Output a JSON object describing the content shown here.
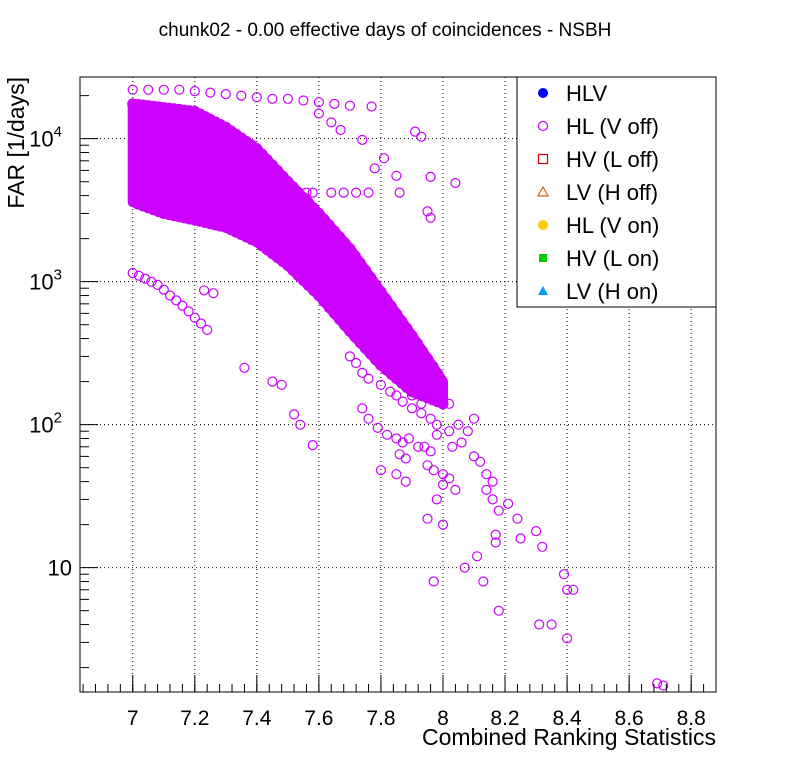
{
  "chart_data": {
    "type": "scatter",
    "title": "chunk02 - 0.00 effective days of coincidences - NSBH",
    "xlabel": "Combined Ranking Statistics",
    "ylabel": "FAR [1/days]",
    "xlim": [
      6.83,
      8.88
    ],
    "ylim": [
      1.35,
      27000
    ],
    "yscale": "log",
    "grid": true,
    "x_ticks": [
      "7",
      "7.2",
      "7.4",
      "7.6",
      "7.8",
      "8",
      "8.2",
      "8.4",
      "8.6",
      "8.8"
    ],
    "y_ticks": [
      {
        "value": 10,
        "base": "10",
        "exp": ""
      },
      {
        "value": 100,
        "base": "10",
        "exp": "2"
      },
      {
        "value": 1000,
        "base": "10",
        "exp": "3"
      },
      {
        "value": 10000,
        "base": "10",
        "exp": "4"
      }
    ],
    "legend_position": "top-right",
    "legend": [
      {
        "name": "HLV",
        "marker": "filled-circle",
        "color": "#0000ff"
      },
      {
        "name": "HL (V off)",
        "marker": "open-circle",
        "color": "#cc00ff"
      },
      {
        "name": "HV (L off)",
        "marker": "open-square",
        "color": "#cc0000"
      },
      {
        "name": "LV (H off)",
        "marker": "open-triangle",
        "color": "#cc6600"
      },
      {
        "name": "HL (V on)",
        "marker": "filled-circle",
        "color": "#ffcc00"
      },
      {
        "name": "HV (L on)",
        "marker": "filled-square",
        "color": "#00cc00"
      },
      {
        "name": "LV (H on)",
        "marker": "filled-triangle",
        "color": "#0099ff"
      }
    ],
    "series": [
      {
        "name": "HL (V off)",
        "color": "#cc00ff",
        "points": [
          [
            7.0,
            22000
          ],
          [
            7.05,
            22000
          ],
          [
            7.1,
            22000
          ],
          [
            7.15,
            22000
          ],
          [
            7.2,
            21500
          ],
          [
            7.25,
            21000
          ],
          [
            7.3,
            20500
          ],
          [
            7.35,
            20000
          ],
          [
            7.4,
            19500
          ],
          [
            7.45,
            19000
          ],
          [
            7.5,
            19000
          ],
          [
            7.55,
            18500
          ],
          [
            7.6,
            18000
          ],
          [
            7.65,
            17500
          ],
          [
            7.7,
            17000
          ],
          [
            7.77,
            16800
          ],
          [
            7.6,
            15000
          ],
          [
            7.64,
            13000
          ],
          [
            7.67,
            11500
          ],
          [
            7.74,
            9800
          ],
          [
            7.91,
            11200
          ],
          [
            7.93,
            10300
          ],
          [
            7.81,
            7300
          ],
          [
            7.85,
            5500
          ],
          [
            7.96,
            5400
          ],
          [
            8.04,
            4900
          ],
          [
            7.46,
            4200
          ],
          [
            7.5,
            4200
          ],
          [
            7.56,
            4200
          ],
          [
            7.58,
            4200
          ],
          [
            7.64,
            4200
          ],
          [
            7.68,
            4200
          ],
          [
            7.72,
            4200
          ],
          [
            7.76,
            4200
          ],
          [
            7.86,
            4200
          ],
          [
            7.95,
            3100
          ],
          [
            7.96,
            2800
          ],
          [
            7.78,
            6200
          ],
          [
            7.0,
            1150
          ],
          [
            7.02,
            1100
          ],
          [
            7.04,
            1050
          ],
          [
            7.06,
            1000
          ],
          [
            7.08,
            950
          ],
          [
            7.1,
            880
          ],
          [
            7.12,
            800
          ],
          [
            7.14,
            740
          ],
          [
            7.16,
            680
          ],
          [
            7.18,
            620
          ],
          [
            7.2,
            560
          ],
          [
            7.22,
            510
          ],
          [
            7.24,
            460
          ],
          [
            7.23,
            870
          ],
          [
            7.26,
            830
          ],
          [
            7.36,
            250
          ],
          [
            7.45,
            200
          ],
          [
            7.48,
            190
          ],
          [
            7.52,
            118
          ],
          [
            7.54,
            100
          ],
          [
            7.58,
            72
          ],
          [
            7.75,
            490
          ],
          [
            7.78,
            430
          ],
          [
            7.8,
            390
          ],
          [
            7.82,
            350
          ],
          [
            7.84,
            320
          ],
          [
            7.86,
            290
          ],
          [
            7.88,
            270
          ],
          [
            7.9,
            250
          ],
          [
            7.92,
            230
          ],
          [
            7.94,
            200
          ],
          [
            7.96,
            180
          ],
          [
            7.98,
            165
          ],
          [
            8.0,
            150
          ],
          [
            8.02,
            140
          ],
          [
            7.7,
            300
          ],
          [
            7.72,
            270
          ],
          [
            7.74,
            230
          ],
          [
            7.76,
            210
          ],
          [
            7.8,
            190
          ],
          [
            7.83,
            170
          ],
          [
            7.85,
            160
          ],
          [
            7.87,
            145
          ],
          [
            7.9,
            130
          ],
          [
            7.93,
            120
          ],
          [
            7.96,
            110
          ],
          [
            7.98,
            100
          ],
          [
            7.74,
            130
          ],
          [
            7.76,
            110
          ],
          [
            7.79,
            95
          ],
          [
            7.82,
            85
          ],
          [
            7.85,
            80
          ],
          [
            7.87,
            75
          ],
          [
            7.89,
            80
          ],
          [
            7.92,
            70
          ],
          [
            7.94,
            70
          ],
          [
            7.96,
            65
          ],
          [
            7.98,
            85
          ],
          [
            8.02,
            90
          ],
          [
            8.05,
            100
          ],
          [
            8.08,
            90
          ],
          [
            8.03,
            70
          ],
          [
            8.06,
            75
          ],
          [
            8.1,
            60
          ],
          [
            8.12,
            55
          ],
          [
            8.14,
            45
          ],
          [
            8.16,
            40
          ],
          [
            7.9,
            160
          ],
          [
            7.93,
            140
          ],
          [
            8.1,
            110
          ],
          [
            7.86,
            62
          ],
          [
            7.88,
            58
          ],
          [
            7.95,
            52
          ],
          [
            7.97,
            48
          ],
          [
            8.0,
            45
          ],
          [
            8.02,
            42
          ],
          [
            7.8,
            48
          ],
          [
            7.85,
            45
          ],
          [
            7.88,
            40
          ],
          [
            8.0,
            38
          ],
          [
            8.04,
            35
          ],
          [
            8.14,
            35
          ],
          [
            8.16,
            30
          ],
          [
            8.18,
            25
          ],
          [
            8.21,
            28
          ],
          [
            8.24,
            22
          ],
          [
            8.3,
            18
          ],
          [
            8.32,
            14
          ],
          [
            8.25,
            16
          ],
          [
            8.17,
            17
          ],
          [
            8.17,
            15
          ],
          [
            7.98,
            30
          ],
          [
            7.95,
            22
          ],
          [
            8.0,
            20
          ],
          [
            7.97,
            8
          ],
          [
            8.07,
            10
          ],
          [
            8.11,
            12
          ],
          [
            8.13,
            8
          ],
          [
            8.18,
            5
          ],
          [
            8.31,
            4
          ],
          [
            8.35,
            4
          ],
          [
            8.39,
            9
          ],
          [
            8.4,
            7
          ],
          [
            8.42,
            7
          ],
          [
            8.4,
            3.2
          ],
          [
            8.69,
            1.55
          ],
          [
            8.71,
            1.5
          ]
        ]
      }
    ]
  }
}
